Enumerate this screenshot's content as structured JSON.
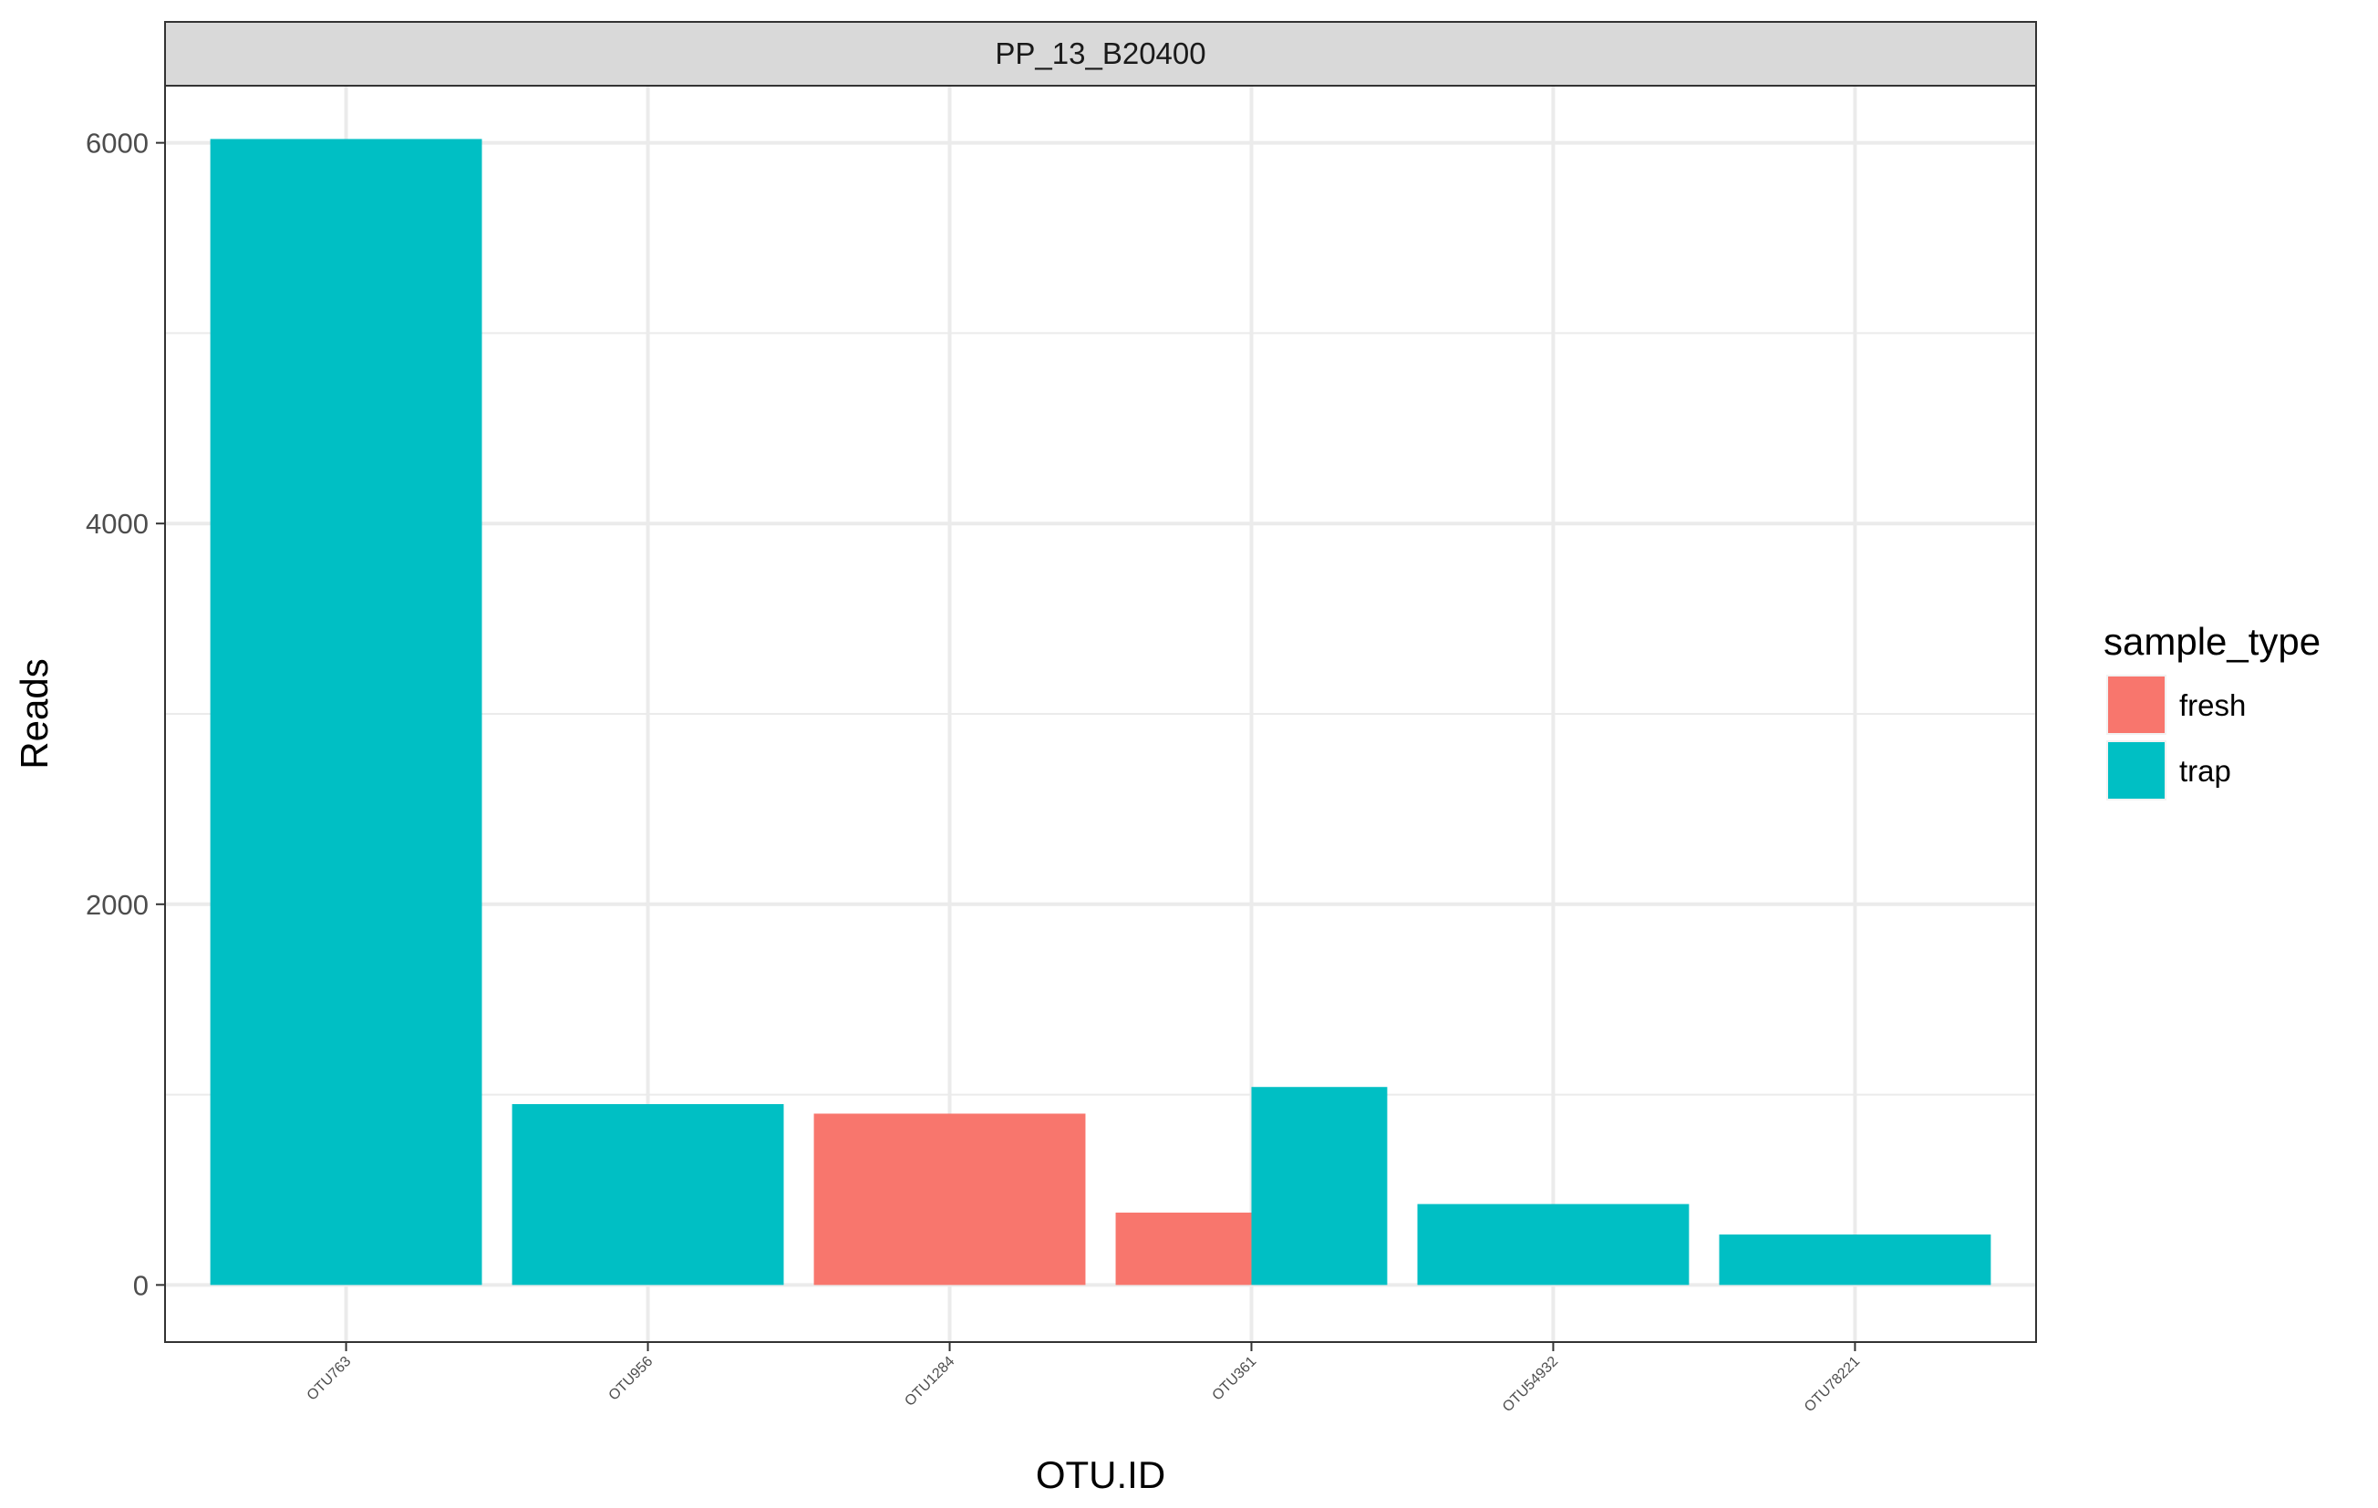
{
  "chart_data": {
    "type": "bar",
    "facet_label": "PP_13_B20400",
    "xlabel": "OTU.ID",
    "ylabel": "Reads",
    "categories": [
      "OTU763",
      "OTU956",
      "OTU1284",
      "OTU361",
      "OTU54932",
      "OTU78221"
    ],
    "yticks": [
      0,
      2000,
      4000,
      6000
    ],
    "ylim": [
      -300,
      6300
    ],
    "grid": true,
    "legend": {
      "title": "sample_type",
      "placement": "right",
      "entries": [
        {
          "name": "fresh",
          "color": "#F8766D"
        },
        {
          "name": "trap",
          "color": "#00BFC4"
        }
      ]
    },
    "bars": [
      {
        "category": "OTU763",
        "segments": [
          {
            "group": "trap",
            "value": 6020
          }
        ]
      },
      {
        "category": "OTU956",
        "segments": [
          {
            "group": "trap",
            "value": 950
          }
        ]
      },
      {
        "category": "OTU1284",
        "segments": [
          {
            "group": "fresh",
            "value": 900
          }
        ]
      },
      {
        "category": "OTU361",
        "segments": [
          {
            "group": "fresh",
            "value": 380
          },
          {
            "group": "trap",
            "value": 1040
          }
        ]
      },
      {
        "category": "OTU54932",
        "segments": [
          {
            "group": "trap",
            "value": 425
          }
        ]
      },
      {
        "category": "OTU78221",
        "segments": [
          {
            "group": "trap",
            "value": 265
          }
        ]
      }
    ]
  }
}
